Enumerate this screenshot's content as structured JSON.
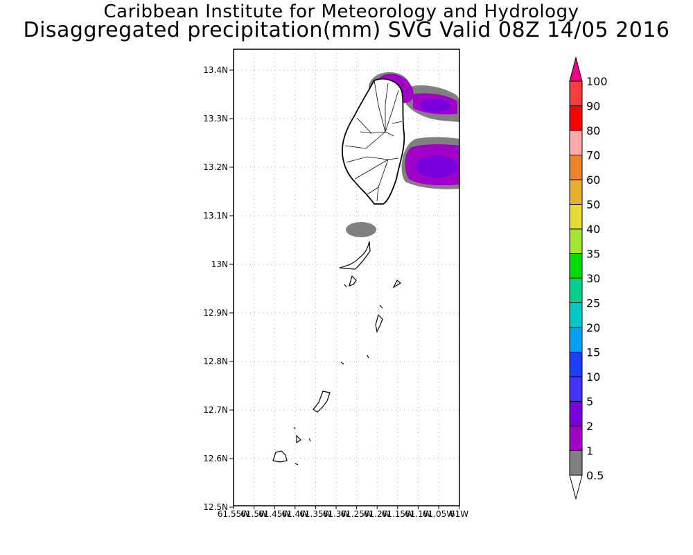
{
  "header": {
    "title_line1": "Caribbean Institute for Meteorology and Hydrology",
    "title_line2": "Disaggregated precipitation(mm) SVG Valid 08Z 14/05 2016"
  },
  "map": {
    "lat_labels": [
      "13.4N",
      "13.3N",
      "13.2N",
      "13.1N",
      "13N",
      "12.9N",
      "12.8N",
      "12.7N",
      "12.6N",
      "12.5N"
    ],
    "lon_labels": [
      "61.55W",
      "61.5W",
      "61.45W",
      "61.4W",
      "61.35W",
      "61.3W",
      "61.25W",
      "61.2W",
      "61.15W",
      "61.1W",
      "61.05W",
      "61W"
    ],
    "lat_range": [
      12.5,
      13.44
    ],
    "lon_range": [
      -61.55,
      -61.0
    ],
    "gridlines": true
  },
  "colorbar": {
    "levels": [
      "0.5",
      "1",
      "2",
      "5",
      "10",
      "15",
      "20",
      "25",
      "30",
      "35",
      "40",
      "50",
      "60",
      "70",
      "80",
      "90",
      "100"
    ],
    "colors": [
      "#808080",
      "#a000c8",
      "#7800dc",
      "#4632ff",
      "#1e3cff",
      "#00a0ff",
      "#00c8c8",
      "#00d28c",
      "#00dc00",
      "#a0e632",
      "#e6dc32",
      "#e6af2d",
      "#f08228",
      "#ffaaaa",
      "#fa0000",
      "#fa3c3c"
    ],
    "top_arrow_color": "#f00082",
    "bottom_arrow_color": "#ffffff"
  }
}
